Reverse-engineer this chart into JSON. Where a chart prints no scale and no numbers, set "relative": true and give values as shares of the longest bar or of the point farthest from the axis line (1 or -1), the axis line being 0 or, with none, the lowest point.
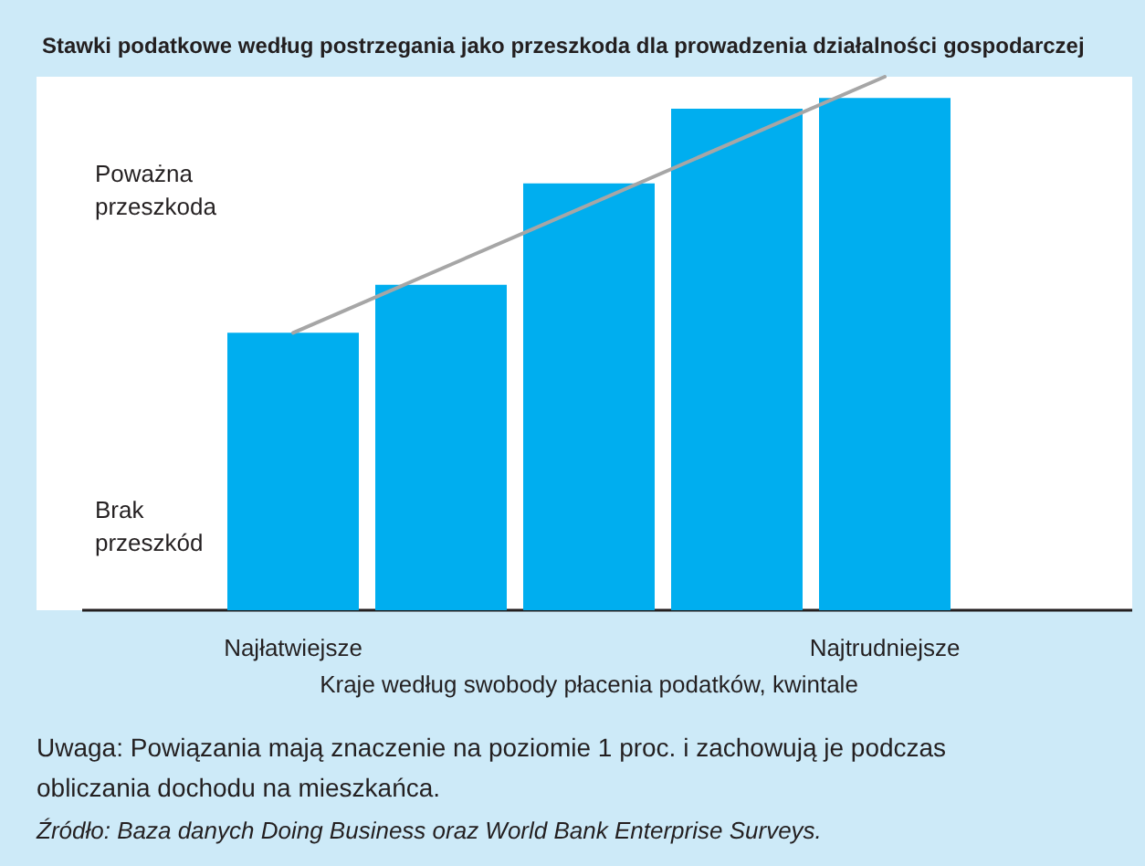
{
  "chart_data": {
    "type": "bar",
    "title": "Stawki podatkowe według postrzegania jako przeszkoda dla prowadzenia działalności gospodarczej",
    "xlabel": "Kraje według swobody płacenia podatków, kwintale",
    "relative": true,
    "categories": [
      "Najłatwiejsze",
      null,
      null,
      null,
      "Najtrudniejsze"
    ],
    "series": [
      {
        "color": "#00aeef",
        "values": [
          0.52,
          0.61,
          0.8,
          0.94,
          0.96
        ]
      },
      {
        "type": "line",
        "color": "#a6a6a6",
        "values": [
          0.52,
          null,
          null,
          null,
          1
        ]
      }
    ],
    "annotations": [
      "Poważna\nprzeszkoda",
      "Brak\nprzeszkód",
      "Uwaga: Powiązania mają znaczenie na poziomie 1 proc. i zachowują je podczas\nobliczania dochodu na mieszkańca.",
      "Źródło: Baza danych Doing Business oraz World Bank Enterprise Surveys."
    ]
  }
}
